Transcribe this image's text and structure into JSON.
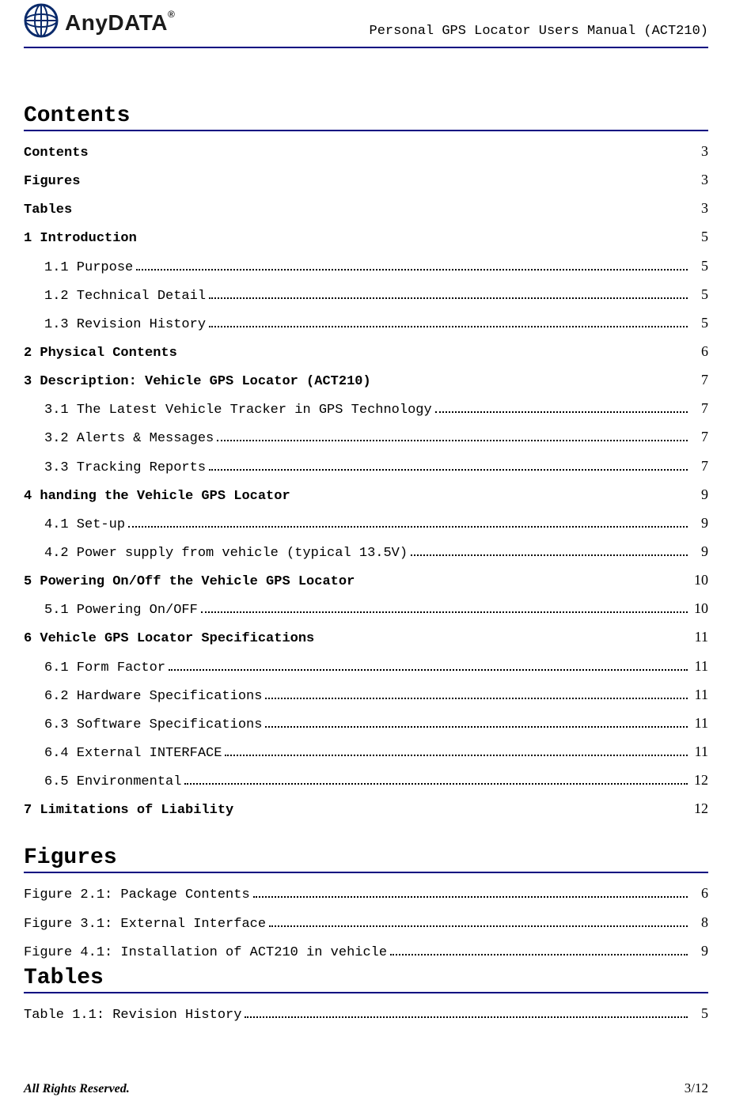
{
  "logo_text": "AnyDATA",
  "logo_reg": "®",
  "header_title": "Personal GPS Locator Users Manual (ACT210)",
  "sections": {
    "contents_heading": "Contents",
    "figures_heading": "Figures",
    "tables_heading": "Tables"
  },
  "toc": [
    {
      "level": 1,
      "label": "Contents",
      "page": "3",
      "leader": false
    },
    {
      "level": 1,
      "label": "Figures",
      "page": "3",
      "leader": false
    },
    {
      "level": 1,
      "label": "Tables",
      "page": "3",
      "leader": false
    },
    {
      "level": 1,
      "label": "1 Introduction",
      "page": "5",
      "leader": false
    },
    {
      "level": 2,
      "label": "1.1 Purpose",
      "page": "5",
      "leader": true
    },
    {
      "level": 2,
      "label": "1.2 Technical Detail",
      "page": "5",
      "leader": true
    },
    {
      "level": 2,
      "label": "1.3 Revision History",
      "page": "5",
      "leader": true
    },
    {
      "level": 1,
      "label": "2 Physical Contents",
      "page": "6",
      "leader": false
    },
    {
      "level": 1,
      "label": "3 Description: Vehicle GPS Locator (ACT210)",
      "page": "7",
      "leader": false
    },
    {
      "level": 2,
      "label": "3.1 The Latest Vehicle Tracker in GPS Technology",
      "page": "7",
      "leader": true
    },
    {
      "level": 2,
      "label": "3.2 Alerts & Messages",
      "page": "7",
      "leader": true
    },
    {
      "level": 2,
      "label": "3.3 Tracking Reports",
      "page": "7",
      "leader": true
    },
    {
      "level": 1,
      "label": "4 handing the Vehicle GPS Locator",
      "page": "9",
      "leader": false
    },
    {
      "level": 2,
      "label": "4.1 Set-up",
      "page": "9",
      "leader": true
    },
    {
      "level": 2,
      "label": "4.2 Power supply from vehicle (typical 13.5V)",
      "page": "9",
      "leader": true
    },
    {
      "level": 1,
      "label": "5 Powering On/Off the Vehicle GPS Locator",
      "page": "10",
      "leader": false
    },
    {
      "level": 2,
      "label": "5.1 Powering On/OFF",
      "page": "10",
      "leader": true
    },
    {
      "level": 1,
      "label": "6 Vehicle GPS Locator Specifications",
      "page": "11",
      "leader": false
    },
    {
      "level": 2,
      "label": "6.1 Form Factor",
      "page": "11",
      "leader": true
    },
    {
      "level": 2,
      "label": "6.2 Hardware Specifications",
      "page": "11",
      "leader": true
    },
    {
      "level": 2,
      "label": "6.3 Software Specifications",
      "page": "11",
      "leader": true
    },
    {
      "level": 2,
      "label": "6.4 External INTERFACE",
      "page": "11",
      "leader": true
    },
    {
      "level": 2,
      "label": "6.5 Environmental",
      "page": "12",
      "leader": true
    },
    {
      "level": 1,
      "label": "7 Limitations of Liability",
      "page": "12",
      "leader": false
    }
  ],
  "figures": [
    {
      "label": "Figure 2.1: Package Contents",
      "page": "6"
    },
    {
      "label": "Figure 3.1: External Interface",
      "page": "8"
    },
    {
      "label": "Figure 4.1: Installation of ACT210 in vehicle",
      "page": "9"
    }
  ],
  "tables": [
    {
      "label": "Table 1.1: Revision History",
      "page": "5"
    }
  ],
  "footer": {
    "left": "All Rights Reserved.",
    "right": "3/12"
  },
  "colors": {
    "rule": "#000080",
    "text": "#000000",
    "background": "#ffffff"
  }
}
